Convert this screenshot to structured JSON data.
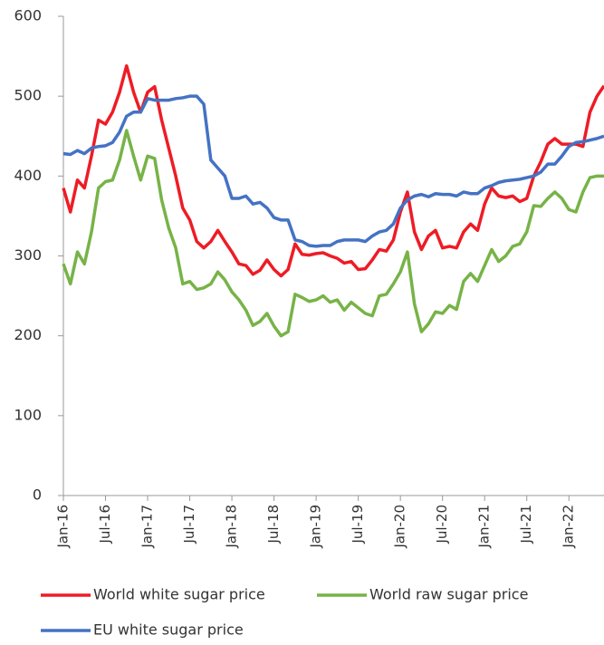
{
  "chart_data": {
    "type": "line",
    "categories": [
      "Jan-16",
      null,
      null,
      null,
      null,
      null,
      "Jul-16",
      null,
      null,
      null,
      null,
      null,
      "Jan-17",
      null,
      null,
      null,
      null,
      null,
      "Jul-17",
      null,
      null,
      null,
      null,
      null,
      "Jan-18",
      null,
      null,
      null,
      null,
      null,
      "Jul-18",
      null,
      null,
      null,
      null,
      null,
      "Jan-19",
      null,
      null,
      null,
      null,
      null,
      "Jul-19",
      null,
      null,
      null,
      null,
      null,
      "Jan-20",
      null,
      null,
      null,
      null,
      null,
      "Jul-20",
      null,
      null,
      null,
      null,
      null,
      "Jan-21",
      null,
      null,
      null,
      null,
      null,
      "Jul-21",
      null,
      null,
      null,
      null,
      null,
      "Jan-22",
      null,
      null,
      null,
      null,
      null
    ],
    "series": [
      {
        "name": "World white sugar price",
        "color": "#ee1c25",
        "values": [
          385,
          355,
          395,
          385,
          425,
          470,
          465,
          480,
          505,
          538,
          505,
          480,
          505,
          512,
          470,
          435,
          400,
          360,
          345,
          318,
          310,
          318,
          332,
          318,
          305,
          290,
          288,
          277,
          282,
          295,
          283,
          275,
          283,
          315,
          302,
          301,
          303,
          304,
          300,
          297,
          291,
          293,
          283,
          284,
          295,
          308,
          306,
          320,
          355,
          380,
          330,
          308,
          325,
          332,
          310,
          312,
          310,
          330,
          340,
          332,
          365,
          385,
          375,
          373,
          375,
          368,
          372,
          400,
          418,
          440,
          447,
          440,
          440,
          440,
          437,
          480,
          500,
          513
        ]
      },
      {
        "name": "World raw sugar price",
        "color": "#77b347",
        "values": [
          290,
          265,
          305,
          290,
          330,
          385,
          393,
          395,
          420,
          457,
          425,
          395,
          425,
          422,
          370,
          335,
          310,
          265,
          268,
          258,
          260,
          265,
          280,
          270,
          255,
          245,
          232,
          213,
          218,
          228,
          212,
          200,
          205,
          252,
          248,
          243,
          245,
          250,
          242,
          245,
          232,
          242,
          235,
          228,
          225,
          250,
          252,
          265,
          280,
          305,
          240,
          205,
          215,
          230,
          228,
          238,
          233,
          268,
          278,
          268,
          288,
          308,
          293,
          300,
          312,
          315,
          330,
          363,
          362,
          372,
          380,
          372,
          358,
          355,
          380,
          398,
          400,
          400
        ]
      },
      {
        "name": "EU white sugar price",
        "color": "#4472c4",
        "values": [
          428,
          427,
          432,
          428,
          435,
          437,
          438,
          442,
          455,
          475,
          480,
          480,
          497,
          495,
          495,
          495,
          497,
          498,
          500,
          500,
          490,
          420,
          410,
          400,
          372,
          372,
          375,
          365,
          367,
          360,
          348,
          345,
          345,
          320,
          318,
          313,
          312,
          313,
          313,
          318,
          320,
          320,
          320,
          318,
          325,
          330,
          332,
          340,
          360,
          370,
          375,
          377,
          374,
          378,
          377,
          377,
          375,
          380,
          378,
          378,
          385,
          388,
          392,
          394,
          395,
          396,
          398,
          400,
          405,
          415,
          415,
          425,
          437,
          442,
          443,
          445,
          447,
          450
        ]
      }
    ],
    "ylim": [
      0,
      600
    ],
    "yticks": [
      0,
      100,
      200,
      300,
      400,
      500,
      600
    ]
  }
}
